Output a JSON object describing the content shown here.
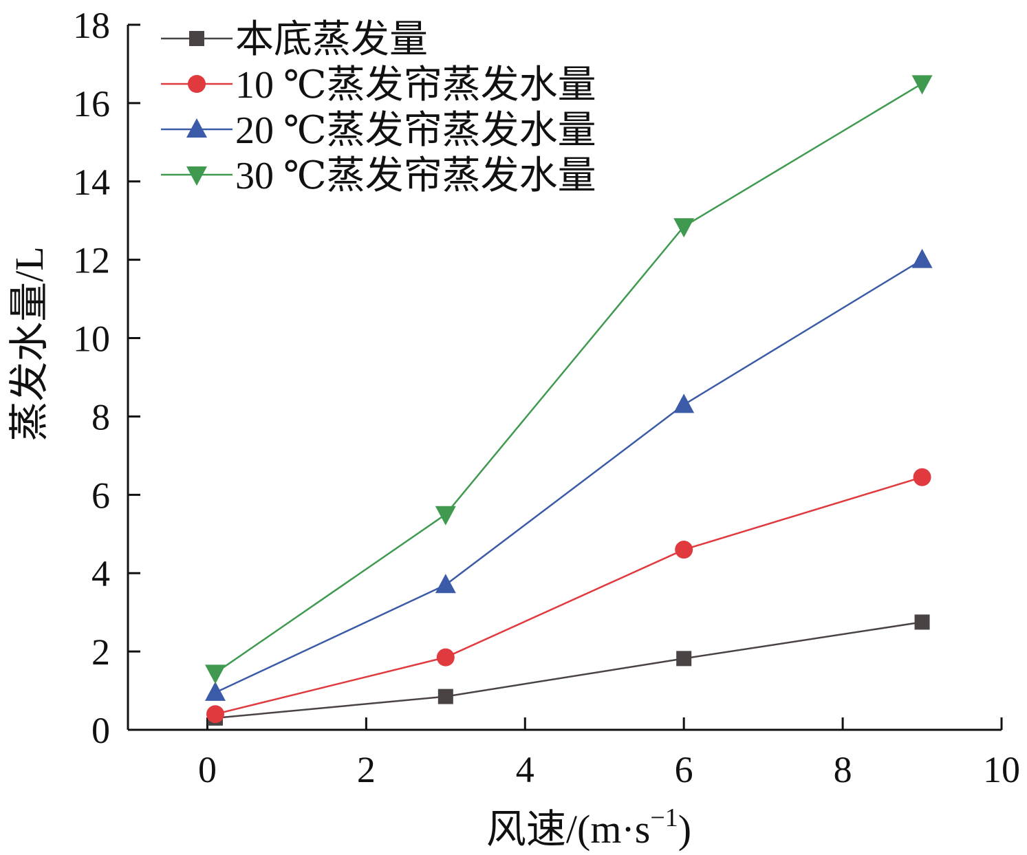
{
  "chart_data": {
    "type": "line",
    "xlabel_main": "风速/(m·s",
    "xlabel_sup": "−1",
    "xlabel_close": ")",
    "ylabel": "蒸发水量/L",
    "xlim": [
      -1,
      10
    ],
    "ylim": [
      0,
      18
    ],
    "xticks": [
      0,
      2,
      4,
      6,
      8,
      10
    ],
    "yticks": [
      0,
      2,
      4,
      6,
      8,
      10,
      12,
      14,
      16,
      18
    ],
    "grid": false,
    "legend_position": "top-left",
    "series": [
      {
        "name": "本底蒸发量",
        "marker": "square",
        "color": "#4a4343",
        "x": [
          0.1,
          3,
          6,
          9
        ],
        "y": [
          0.3,
          0.85,
          1.82,
          2.75
        ]
      },
      {
        "name": "10 ℃蒸发帘蒸发水量",
        "marker": "circle",
        "color": "#e0393e",
        "x": [
          0.1,
          3,
          6,
          9
        ],
        "y": [
          0.4,
          1.85,
          4.6,
          6.45
        ]
      },
      {
        "name": "20 ℃蒸发帘蒸发水量",
        "marker": "triangle-up",
        "color": "#3b5ba8",
        "x": [
          0.1,
          3,
          6,
          9
        ],
        "y": [
          0.95,
          3.7,
          8.3,
          12.0
        ]
      },
      {
        "name": "30 ℃蒸发帘蒸发水量",
        "marker": "triangle-down",
        "color": "#3f9a4f",
        "x": [
          0.1,
          3,
          6,
          9
        ],
        "y": [
          1.45,
          5.5,
          12.85,
          16.5
        ]
      }
    ]
  }
}
